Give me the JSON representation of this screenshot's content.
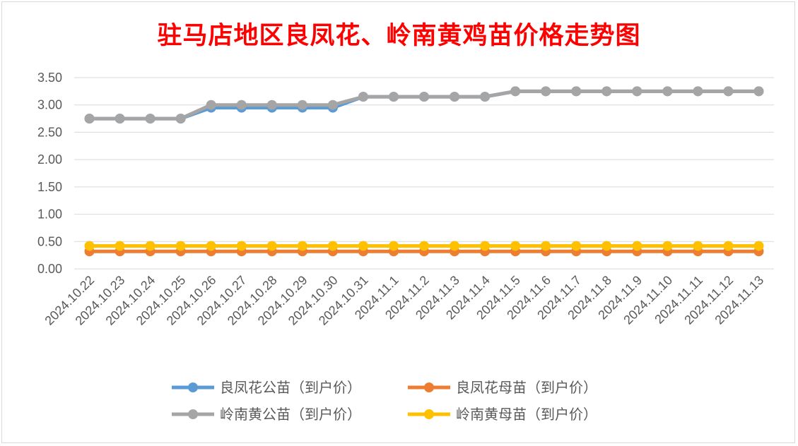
{
  "chart_data": {
    "type": "line",
    "title": "驻马店地区良凤花、岭南黄鸡苗价格走势图",
    "categories": [
      "2024.10.22",
      "2024.10.23",
      "2024.10.24",
      "2024.10.25",
      "2024.10.26",
      "2024.10.27",
      "2024.10.28",
      "2024.10.29",
      "2024.10.30",
      "2024.10.31",
      "2024.11.1",
      "2024.11.2",
      "2024.11.3",
      "2024.11.4",
      "2024.11.5",
      "2024.11.6",
      "2024.11.7",
      "2024.11.8",
      "2024.11.9",
      "2024.11.10",
      "2024.11.11",
      "2024.11.12",
      "2024.11.13"
    ],
    "yticks": [
      "0.00",
      "0.50",
      "1.00",
      "1.50",
      "2.00",
      "2.50",
      "3.00",
      "3.50"
    ],
    "ylim": [
      0,
      3.5
    ],
    "grid": true,
    "legend_position": "bottom",
    "series": [
      {
        "name": "良凤花公苗（到户价）",
        "color": "#5b9bd5",
        "values": [
          2.75,
          2.75,
          2.75,
          2.75,
          2.95,
          2.95,
          2.95,
          2.95,
          2.95,
          3.15,
          3.15,
          3.15,
          3.15,
          3.15,
          3.25,
          3.25,
          3.25,
          3.25,
          3.25,
          3.25,
          3.25,
          3.25,
          3.25
        ]
      },
      {
        "name": "良凤花母苗（到户价）",
        "color": "#ed7d31",
        "values": [
          0.32,
          0.32,
          0.32,
          0.32,
          0.32,
          0.32,
          0.32,
          0.32,
          0.32,
          0.32,
          0.32,
          0.32,
          0.32,
          0.32,
          0.32,
          0.32,
          0.32,
          0.32,
          0.32,
          0.32,
          0.32,
          0.32,
          0.32
        ]
      },
      {
        "name": "岭南黄公苗（到户价）",
        "color": "#a5a5a5",
        "values": [
          2.75,
          2.75,
          2.75,
          2.75,
          3.0,
          3.0,
          3.0,
          3.0,
          3.0,
          3.15,
          3.15,
          3.15,
          3.15,
          3.15,
          3.25,
          3.25,
          3.25,
          3.25,
          3.25,
          3.25,
          3.25,
          3.25,
          3.25
        ]
      },
      {
        "name": "岭南黄母苗（到户价）",
        "color": "#ffc000",
        "values": [
          0.42,
          0.42,
          0.42,
          0.42,
          0.42,
          0.42,
          0.42,
          0.42,
          0.42,
          0.42,
          0.42,
          0.42,
          0.42,
          0.42,
          0.42,
          0.42,
          0.42,
          0.42,
          0.42,
          0.42,
          0.42,
          0.42,
          0.42
        ]
      }
    ]
  }
}
